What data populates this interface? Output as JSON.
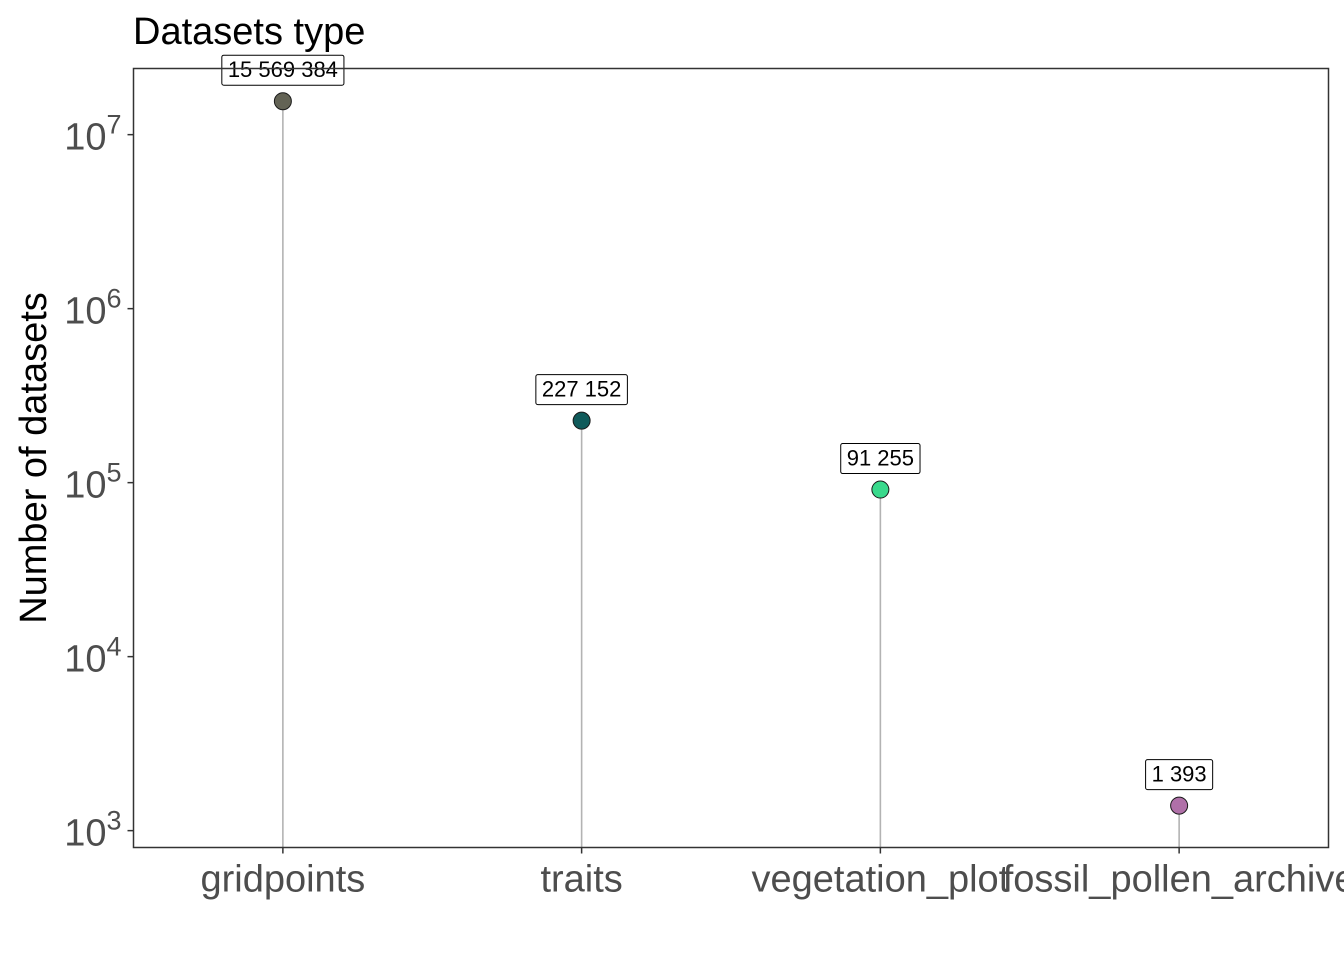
{
  "chart_data": {
    "type": "lollipop",
    "title": "Datasets type",
    "xlabel": "",
    "ylabel": "Number of datasets",
    "yscale": "log10",
    "ylim": [
      800,
      24000000
    ],
    "yticks": [
      {
        "value": 1000,
        "base": "10",
        "exp": "3"
      },
      {
        "value": 10000,
        "base": "10",
        "exp": "4"
      },
      {
        "value": 100000,
        "base": "10",
        "exp": "5"
      },
      {
        "value": 1000000,
        "base": "10",
        "exp": "6"
      },
      {
        "value": 10000000,
        "base": "10",
        "exp": "7"
      }
    ],
    "grid": false,
    "points": [
      {
        "category": "gridpoints",
        "value": 15569384,
        "label": "15 569 384",
        "color": "#636355"
      },
      {
        "category": "traits",
        "value": 227152,
        "label": "227 152",
        "color": "#0f5a5a"
      },
      {
        "category": "vegetation_plot",
        "value": 91255,
        "label": "91 255",
        "color": "#39d98c"
      },
      {
        "category": "fossil_pollen_archive",
        "value": 1393,
        "label": "1 393",
        "color": "#b070a8"
      }
    ],
    "stem_color": "#b3b3b3"
  }
}
